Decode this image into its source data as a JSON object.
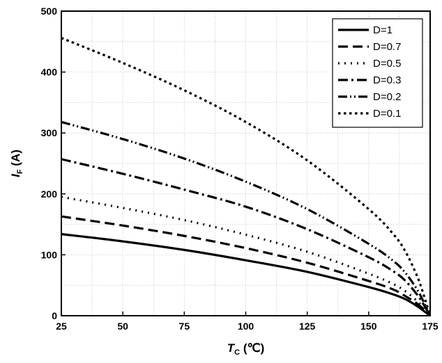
{
  "chart_data": {
    "type": "line",
    "xlabel": {
      "symbol": "T",
      "sub": "C",
      "unit": " (℃)"
    },
    "ylabel": {
      "symbol": "I",
      "sub": "F",
      "unit": " (A)"
    },
    "xlim": [
      25,
      175
    ],
    "ylim": [
      0,
      500
    ],
    "x_ticks": [
      25,
      50,
      75,
      100,
      125,
      150,
      175
    ],
    "y_ticks": [
      0,
      100,
      200,
      300,
      400,
      500
    ],
    "grid": true,
    "legend_position": "top-right",
    "series": [
      {
        "name": "D=1",
        "dash": "solid",
        "points": [
          [
            25,
            134
          ],
          [
            50,
            122
          ],
          [
            75,
            108
          ],
          [
            100,
            91
          ],
          [
            125,
            72
          ],
          [
            150,
            47
          ],
          [
            160,
            35
          ],
          [
            165,
            27
          ],
          [
            170,
            15
          ],
          [
            173,
            6
          ],
          [
            175,
            0
          ]
        ]
      },
      {
        "name": "D=0.7",
        "dash": "dash",
        "points": [
          [
            25,
            163
          ],
          [
            50,
            148
          ],
          [
            75,
            131
          ],
          [
            100,
            111
          ],
          [
            125,
            87
          ],
          [
            150,
            57
          ],
          [
            160,
            43
          ],
          [
            165,
            32
          ],
          [
            170,
            19
          ],
          [
            173,
            8
          ],
          [
            175,
            0
          ]
        ]
      },
      {
        "name": "D=0.5",
        "dash": "dot",
        "points": [
          [
            25,
            195
          ],
          [
            50,
            177
          ],
          [
            75,
            157
          ],
          [
            100,
            133
          ],
          [
            125,
            105
          ],
          [
            150,
            69
          ],
          [
            160,
            52
          ],
          [
            165,
            40
          ],
          [
            170,
            23
          ],
          [
            173,
            10
          ],
          [
            175,
            0
          ]
        ]
      },
      {
        "name": "D=0.3",
        "dash": "dashdot",
        "points": [
          [
            25,
            257
          ],
          [
            50,
            233
          ],
          [
            75,
            207
          ],
          [
            100,
            179
          ],
          [
            125,
            142
          ],
          [
            150,
            96
          ],
          [
            160,
            73
          ],
          [
            165,
            57
          ],
          [
            170,
            33
          ],
          [
            173,
            14
          ],
          [
            175,
            0
          ]
        ]
      },
      {
        "name": "D=0.2",
        "dash": "dashdotdot",
        "points": [
          [
            25,
            318
          ],
          [
            50,
            290
          ],
          [
            75,
            258
          ],
          [
            100,
            220
          ],
          [
            125,
            175
          ],
          [
            150,
            118
          ],
          [
            160,
            90
          ],
          [
            165,
            70
          ],
          [
            170,
            41
          ],
          [
            173,
            17
          ],
          [
            175,
            0
          ]
        ]
      },
      {
        "name": "D=0.1",
        "dash": "shortdot",
        "points": [
          [
            25,
            456
          ],
          [
            50,
            415
          ],
          [
            75,
            370
          ],
          [
            100,
            318
          ],
          [
            125,
            255
          ],
          [
            150,
            175
          ],
          [
            160,
            134
          ],
          [
            165,
            105
          ],
          [
            170,
            62
          ],
          [
            173,
            26
          ],
          [
            175,
            0
          ]
        ]
      }
    ]
  }
}
